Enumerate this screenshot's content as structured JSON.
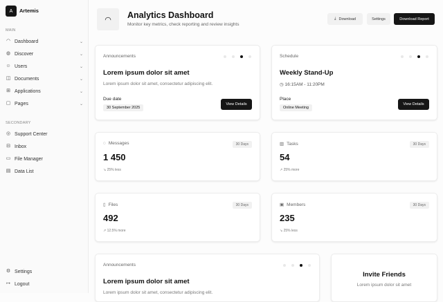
{
  "sidebar": {
    "logo_letter": "A",
    "brand": "Artemis",
    "main_label": "MAIN",
    "secondary_label": "SECONDARY",
    "main_items": [
      {
        "label": "Dashboard",
        "icon": "gauge-icon"
      },
      {
        "label": "Discover",
        "icon": "globe-icon"
      },
      {
        "label": "Users",
        "icon": "users-icon"
      },
      {
        "label": "Documents",
        "icon": "book-icon"
      },
      {
        "label": "Applications",
        "icon": "grid-icon"
      },
      {
        "label": "Pages",
        "icon": "page-icon"
      }
    ],
    "secondary_items": [
      {
        "label": "Support Center",
        "icon": "support-icon"
      },
      {
        "label": "Inbox",
        "icon": "inbox-icon"
      },
      {
        "label": "File Manager",
        "icon": "folder-icon"
      },
      {
        "label": "Data List",
        "icon": "list-icon"
      }
    ],
    "bottom_items": [
      {
        "label": "Settings",
        "icon": "gear-icon"
      },
      {
        "label": "Logout",
        "icon": "logout-icon"
      }
    ]
  },
  "header": {
    "title": "Analytics Dashboard",
    "subtitle": "Monitor key metrics, check reporting and review insights",
    "download": "Download",
    "settings": "Settings",
    "download_report": "Download Report"
  },
  "announcement": {
    "label": "Announcements",
    "title": "Lorem ipsum dolor sit amet",
    "desc": "Lorem ipsum dolor sit amet, consectetur adipiscing elit.",
    "due_label": "Due date",
    "due": "30 September 2025",
    "button": "View Details",
    "active_dot": 3,
    "dots": 4
  },
  "schedule": {
    "label": "Schedule",
    "title": "Weekly Stand-Up",
    "time": "16:15AM - 11:20PM",
    "place_label": "Place",
    "place": "Online Meeting",
    "button": "View Details",
    "active_dot": 3,
    "dots": 4
  },
  "stats": [
    {
      "label": "Messages",
      "icon": "message-icon",
      "period": "30 Days",
      "value": "1 450",
      "trend": "25% less",
      "trend_dir": "down"
    },
    {
      "label": "Tasks",
      "icon": "briefcase-icon",
      "period": "30 Days",
      "value": "54",
      "trend": "25% more",
      "trend_dir": "up"
    },
    {
      "label": "Files",
      "icon": "file-icon",
      "period": "30 Days",
      "value": "492",
      "trend": "12.5% more",
      "trend_dir": "up"
    },
    {
      "label": "Members",
      "icon": "id-badge-icon",
      "period": "30 Days",
      "value": "235",
      "trend": "25% less",
      "trend_dir": "down"
    }
  ],
  "announcement2": {
    "label": "Announcements",
    "title": "Lorem ipsum dolor sit amet",
    "desc": "Lorem ipsum dolor sit amet, consectetur adipiscing elit."
  },
  "invite": {
    "title": "Invite Friends",
    "desc": "Lorem ipsum dolor sit amet"
  }
}
